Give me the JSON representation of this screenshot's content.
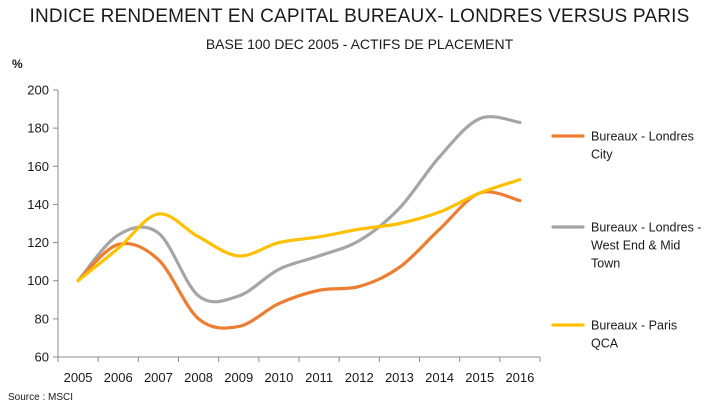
{
  "chart_data": {
    "type": "line",
    "title": "INDICE RENDEMENT EN CAPITAL BUREAUX- LONDRES VERSUS PARIS",
    "subtitle": "BASE 100 DEC 2005 - ACTIFS DE PLACEMENT",
    "ylabel": "%",
    "source": "Source : MSCI",
    "x": [
      "2005",
      "2006",
      "2007",
      "2008",
      "2009",
      "2010",
      "2011",
      "2012",
      "2013",
      "2014",
      "2015",
      "2016"
    ],
    "yticks": [
      60,
      80,
      100,
      120,
      140,
      160,
      180,
      200
    ],
    "ylim": [
      60,
      200
    ],
    "grid": false,
    "legend_position": "right",
    "series": [
      {
        "name": "Bureaux - Londres City",
        "legend_lines": [
          "Bureaux - Londres",
          "City"
        ],
        "color": "#ED7D31",
        "values": [
          100,
          119,
          111,
          80,
          76,
          88,
          95,
          97,
          107,
          127,
          146,
          142
        ]
      },
      {
        "name": "Bureaux - Londres - West End & Mid Town",
        "legend_lines": [
          "Bureaux - Londres -",
          "West End & Mid",
          "Town"
        ],
        "color": "#A5A5A5",
        "values": [
          100,
          124,
          125,
          92,
          92,
          106,
          113,
          121,
          138,
          165,
          185,
          183
        ]
      },
      {
        "name": "Bureaux - Paris QCA",
        "legend_lines": [
          "Bureaux - Paris",
          "QCA"
        ],
        "color": "#FFC000",
        "values": [
          100,
          117,
          135,
          123,
          113,
          120,
          123,
          127,
          130,
          136,
          146,
          153
        ]
      }
    ]
  }
}
